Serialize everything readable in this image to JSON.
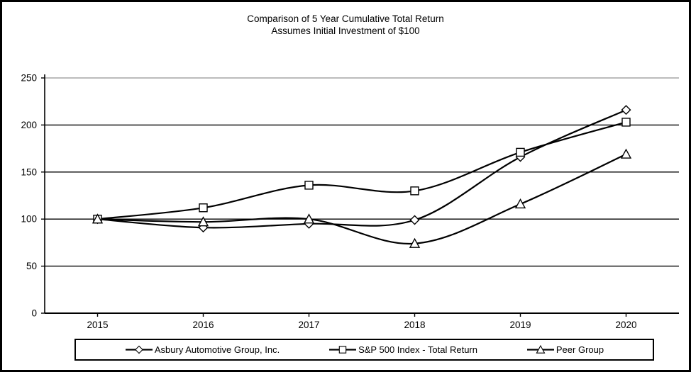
{
  "title": {
    "line1": "Comparison of 5 Year Cumulative Total Return",
    "line2": "Assumes Initial Investment of $100"
  },
  "chart_data": {
    "type": "line",
    "categories": [
      "2015",
      "2016",
      "2017",
      "2018",
      "2019",
      "2020"
    ],
    "series": [
      {
        "name": "Asbury Automotive Group, Inc.",
        "marker": "diamond",
        "values": [
          100,
          91,
          95,
          99,
          166,
          216
        ]
      },
      {
        "name": "S&P 500 Index - Total Return",
        "marker": "square",
        "values": [
          100,
          112,
          136,
          130,
          171,
          203
        ]
      },
      {
        "name": "Peer Group",
        "marker": "triangle",
        "values": [
          100,
          97,
          100,
          74,
          116,
          169
        ]
      }
    ],
    "ylim": [
      0,
      250
    ],
    "yticks": [
      0,
      50,
      100,
      150,
      200,
      250
    ],
    "xlabel": "",
    "ylabel": "",
    "grid": "horizontal",
    "smooth": true,
    "legend_position": "bottom",
    "colors": {
      "line": "#000000",
      "marker_fill": "#ffffff",
      "gridline": "#000000",
      "plot_top_border": "#a6a6a6",
      "frame": "#000000",
      "background": "#ffffff"
    }
  }
}
